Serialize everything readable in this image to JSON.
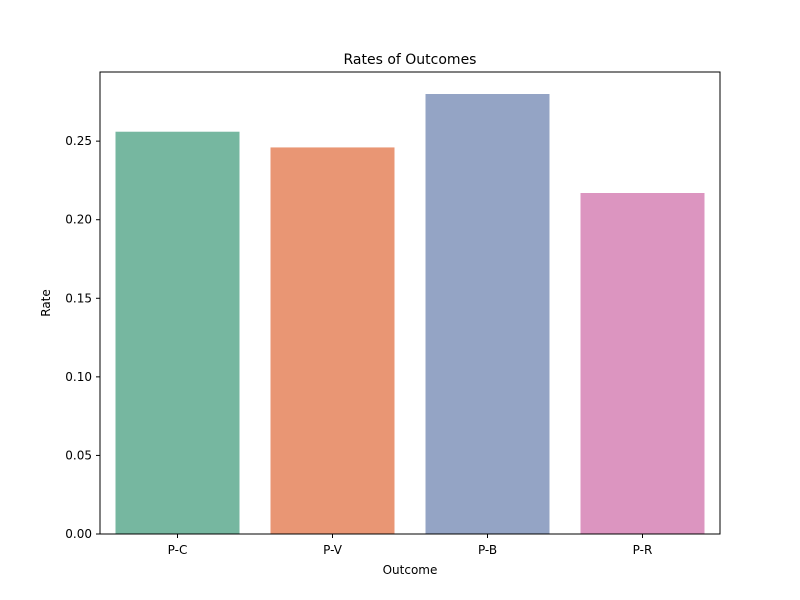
{
  "chart_data": {
    "type": "bar",
    "title": "Rates of Outcomes",
    "xlabel": "Outcome",
    "ylabel": "Rate",
    "categories": [
      "P-C",
      "P-V",
      "P-B",
      "P-R"
    ],
    "values": [
      0.256,
      0.246,
      0.28,
      0.217
    ],
    "colors": [
      "#76b7a0",
      "#e99674",
      "#94a4c5",
      "#dc95c0"
    ],
    "ylim": [
      0,
      0.294
    ],
    "yticks": [
      0.0,
      0.05,
      0.1,
      0.15,
      0.2,
      0.25
    ],
    "ytick_labels": [
      "0.00",
      "0.05",
      "0.10",
      "0.15",
      "0.20",
      "0.25"
    ],
    "grid": false,
    "legend": "none"
  }
}
